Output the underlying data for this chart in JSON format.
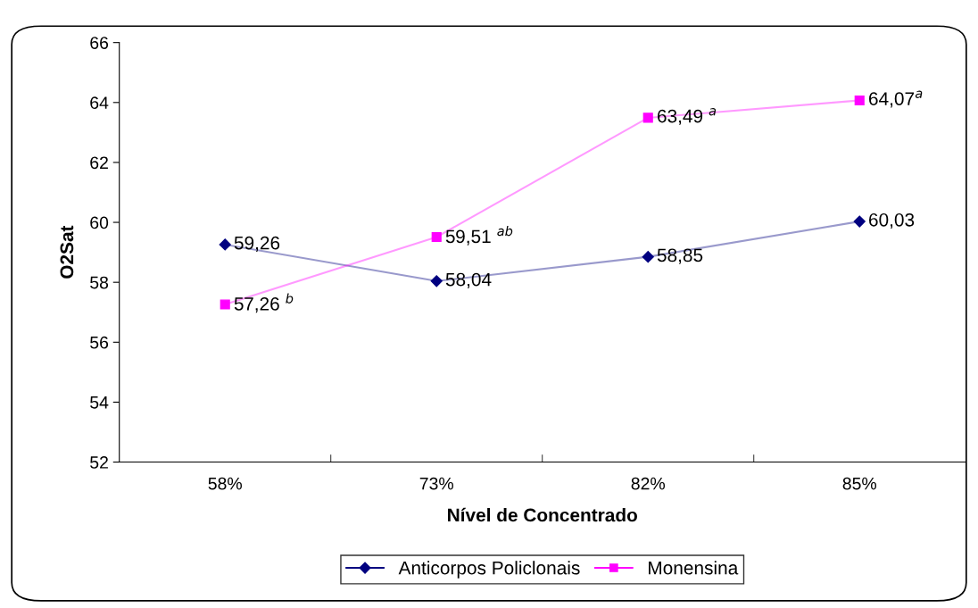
{
  "chart_data": {
    "type": "line",
    "xlabel": "Nível de Concentrado",
    "ylabel": "O2Sat",
    "categories": [
      "58%",
      "73%",
      "82%",
      "85%"
    ],
    "series": [
      {
        "name": "Anticorpos Policlonais",
        "color": "#000080",
        "marker": "diamond",
        "values": [
          59.26,
          58.04,
          58.85,
          60.03
        ],
        "value_labels": [
          "59,26",
          "58,04",
          "58,85",
          "60,03"
        ]
      },
      {
        "name": "Monensina",
        "color": "#ff00ff",
        "marker": "square",
        "values": [
          57.26,
          59.51,
          63.49,
          64.07
        ],
        "value_labels": [
          "57,26 $^{b}$",
          "59,51 $^{ab}$",
          "63,49 $^{a}$",
          "64,07$^{a}$"
        ]
      }
    ],
    "ylim": [
      52,
      66
    ],
    "yticks": [
      52,
      54,
      56,
      58,
      60,
      62,
      64,
      66
    ],
    "grid": false,
    "legend": "bottom",
    "line_style": "solid"
  }
}
